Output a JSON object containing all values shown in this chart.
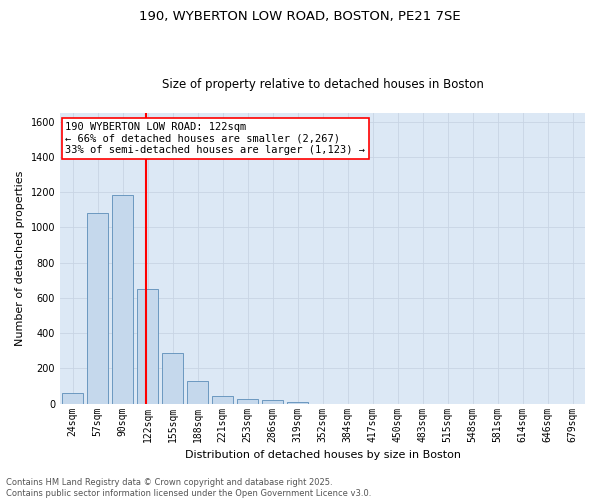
{
  "title_line1": "190, WYBERTON LOW ROAD, BOSTON, PE21 7SE",
  "title_line2": "Size of property relative to detached houses in Boston",
  "xlabel": "Distribution of detached houses by size in Boston",
  "ylabel": "Number of detached properties",
  "categories": [
    "24sqm",
    "57sqm",
    "90sqm",
    "122sqm",
    "155sqm",
    "188sqm",
    "221sqm",
    "253sqm",
    "286sqm",
    "319sqm",
    "352sqm",
    "384sqm",
    "417sqm",
    "450sqm",
    "483sqm",
    "515sqm",
    "548sqm",
    "581sqm",
    "614sqm",
    "646sqm",
    "679sqm"
  ],
  "values": [
    60,
    1080,
    1185,
    648,
    285,
    128,
    45,
    25,
    18,
    12,
    0,
    0,
    0,
    0,
    0,
    0,
    0,
    0,
    0,
    0,
    0
  ],
  "bar_color": "#c5d8ec",
  "bar_edge_color": "#5b8db8",
  "vline_color": "red",
  "vline_index": 3,
  "annotation_text": "190 WYBERTON LOW ROAD: 122sqm\n← 66% of detached houses are smaller (2,267)\n33% of semi-detached houses are larger (1,123) →",
  "annotation_box_color": "white",
  "annotation_box_edge": "red",
  "ylim": [
    0,
    1650
  ],
  "yticks": [
    0,
    200,
    400,
    600,
    800,
    1000,
    1200,
    1400,
    1600
  ],
  "footnote": "Contains HM Land Registry data © Crown copyright and database right 2025.\nContains public sector information licensed under the Open Government Licence v3.0.",
  "grid_color": "#c8d4e4",
  "background_color": "#dce8f5",
  "title_fontsize": 9.5,
  "subtitle_fontsize": 8.5,
  "axis_label_fontsize": 8,
  "tick_fontsize": 7,
  "annotation_fontsize": 7.5,
  "footnote_fontsize": 6
}
